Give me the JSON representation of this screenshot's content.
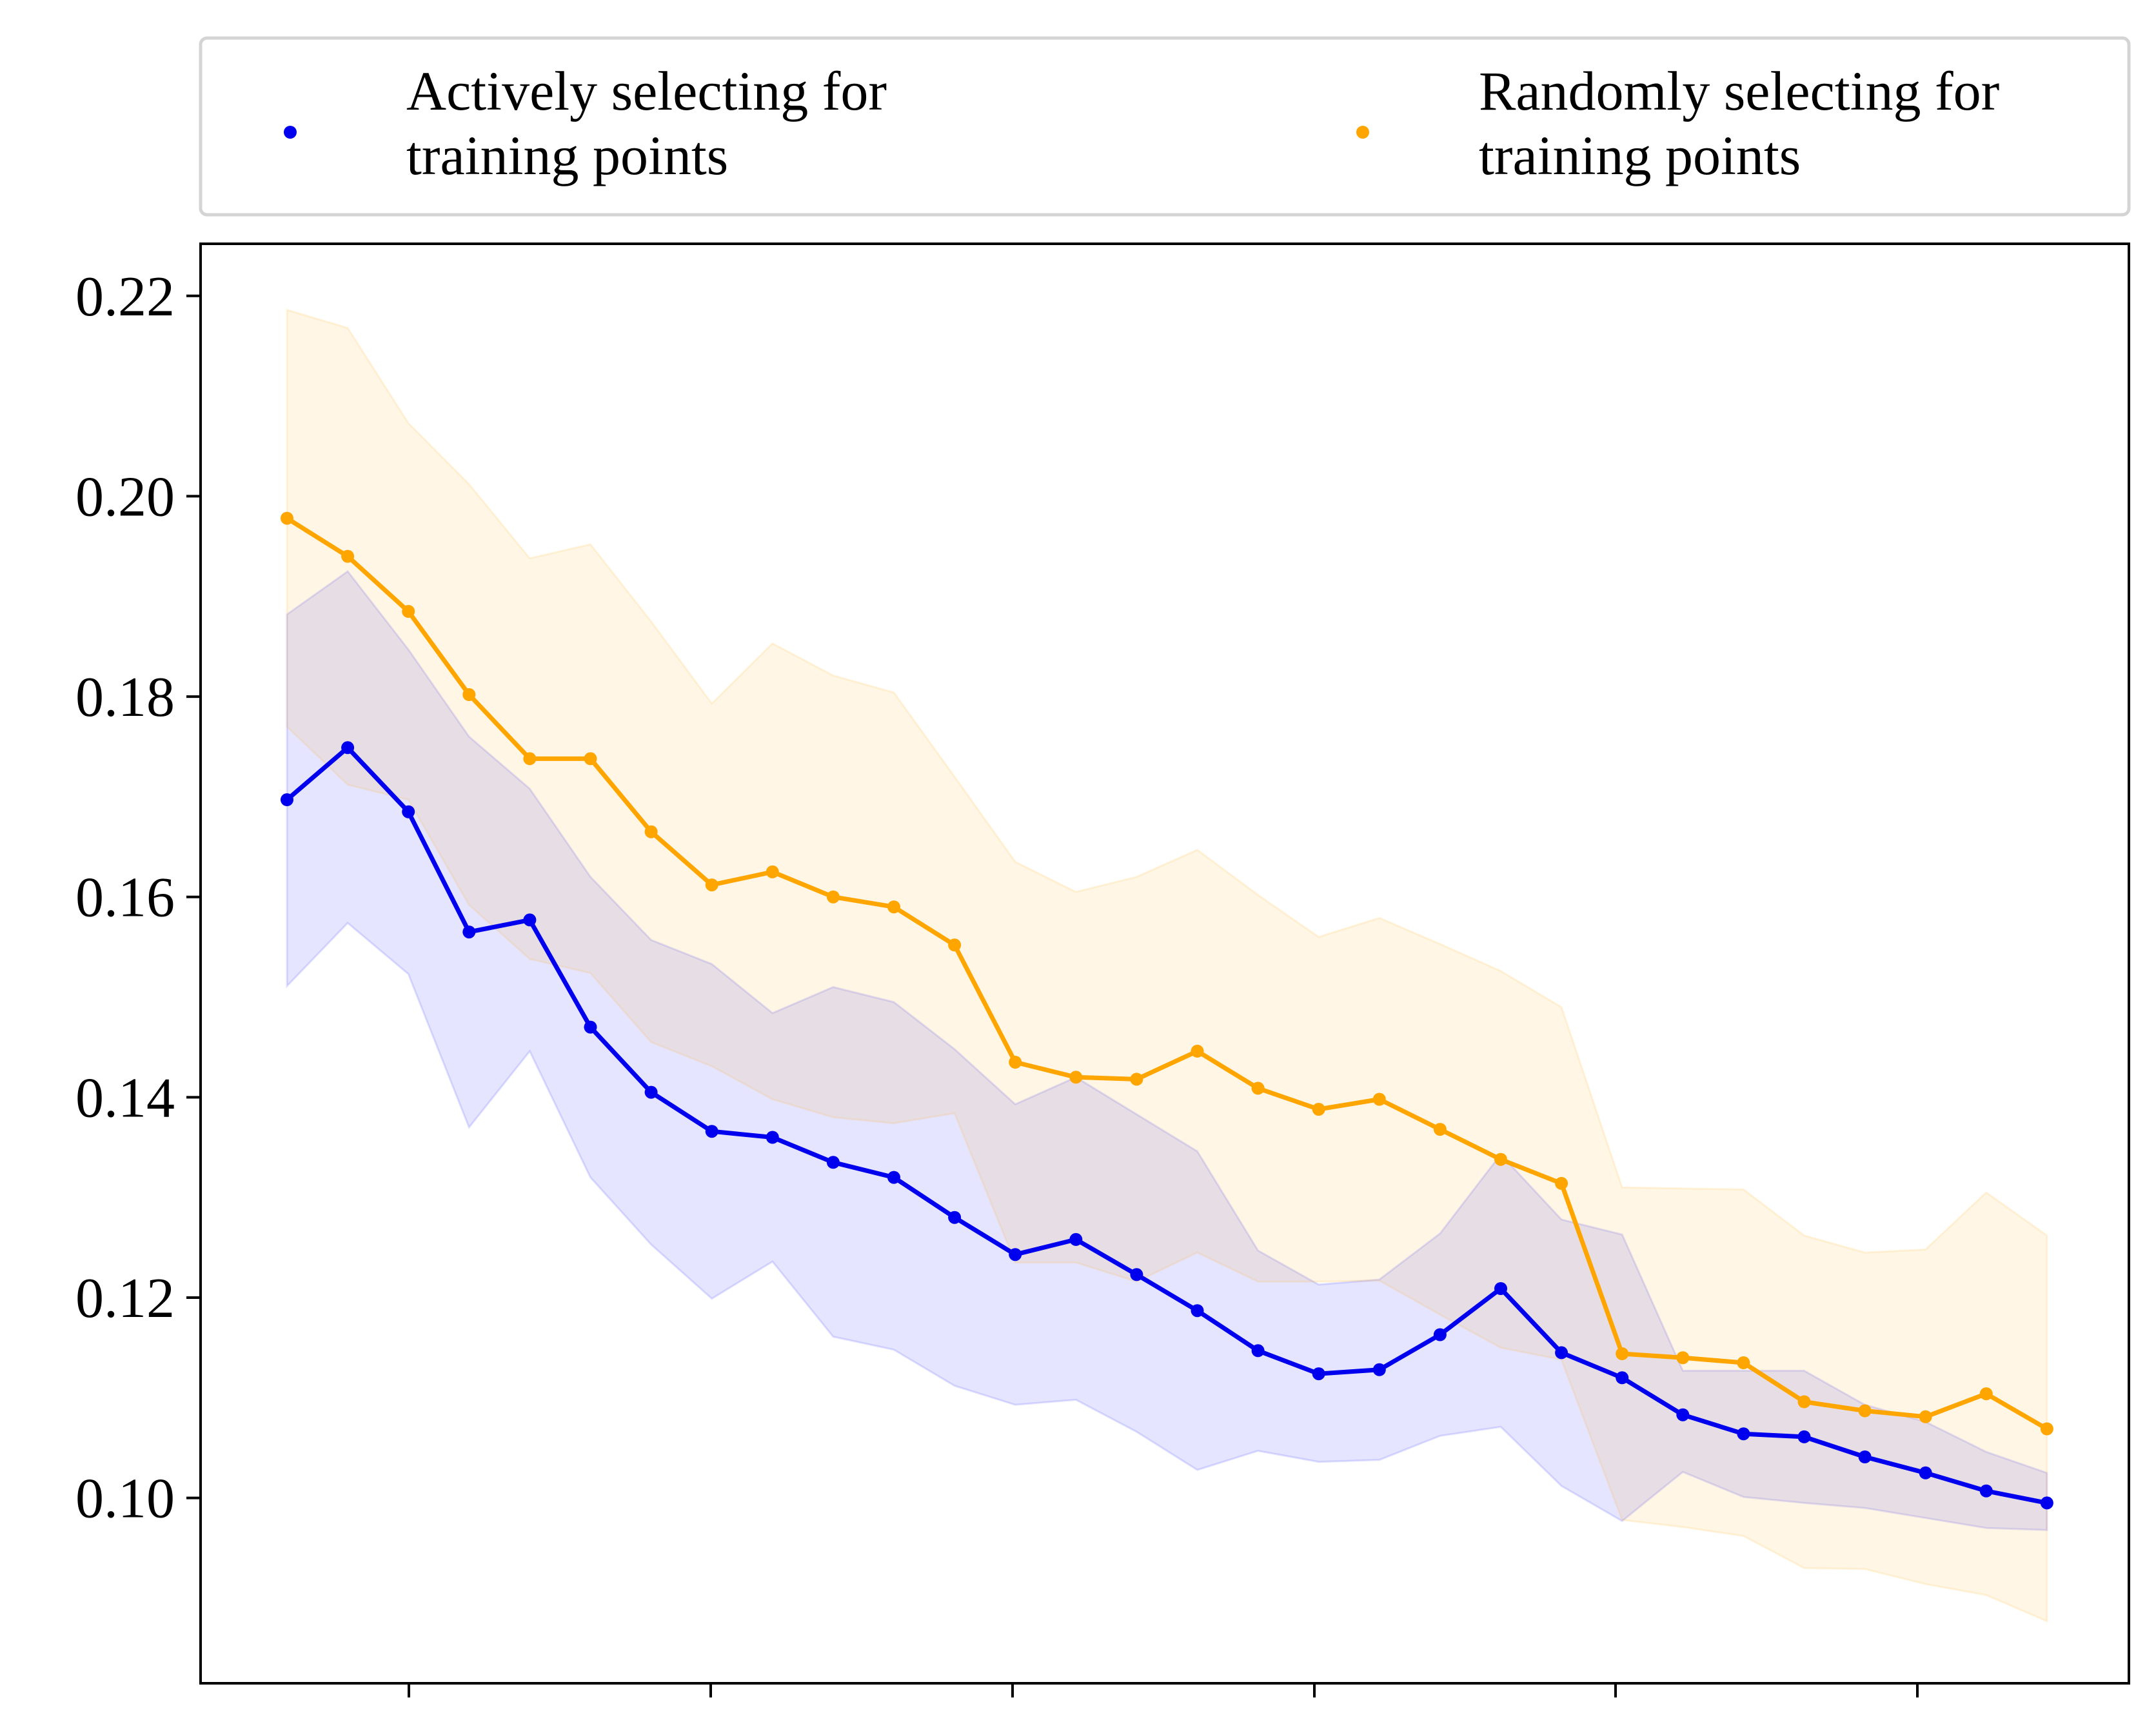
{
  "chart_data": {
    "type": "line",
    "title": "",
    "xlabel": "",
    "ylabel": "",
    "x": [
      1,
      2,
      3,
      4,
      5,
      6,
      7,
      8,
      9,
      10,
      11,
      12,
      13,
      14,
      15,
      16,
      17,
      18,
      19,
      20,
      21,
      22,
      23,
      24,
      25,
      26,
      27,
      28,
      29,
      30
    ],
    "ylim": [
      0.0815,
      0.2252
    ],
    "yticks": [
      0.1,
      0.12,
      0.14,
      0.16,
      0.18,
      0.2,
      0.22
    ],
    "ytick_labels": [
      "0.10",
      "0.12",
      "0.14",
      "0.16",
      "0.18",
      "0.20",
      "0.22"
    ],
    "xtick_labels": [
      "",
      "",
      "",
      "",
      "",
      ""
    ],
    "grid": false,
    "legend": {
      "placement": "above-plot",
      "columns": 2,
      "entries": [
        {
          "label_line1": "Actively selecting for",
          "label_line2": "training points",
          "color": "#0000ee"
        },
        {
          "label_line1": "Randomly selecting for",
          "label_line2": "training points",
          "color": "#ffa500"
        }
      ]
    },
    "series": [
      {
        "name": "Actively selecting for training points",
        "color": "#0000ee",
        "band_color": "#0000ff",
        "values": [
          0.1697,
          0.1749,
          0.1685,
          0.1565,
          0.1577,
          0.147,
          0.1405,
          0.1366,
          0.136,
          0.1335,
          0.132,
          0.128,
          0.1243,
          0.1258,
          0.1223,
          0.1187,
          0.1147,
          0.1124,
          0.1128,
          0.1163,
          0.1209,
          0.1145,
          0.112,
          0.1083,
          0.1064,
          0.1061,
          0.1041,
          0.1025,
          0.1007,
          0.0995
        ],
        "upper": [
          0.1882,
          0.1925,
          0.1847,
          0.176,
          0.1708,
          0.162,
          0.1557,
          0.1533,
          0.1484,
          0.151,
          0.1495,
          0.1448,
          0.1393,
          0.142,
          0.1383,
          0.1346,
          0.1247,
          0.1213,
          0.1218,
          0.1264,
          0.1343,
          0.1278,
          0.1263,
          0.1127,
          0.1127,
          0.1127,
          0.1093,
          0.1076,
          0.1046,
          0.1025
        ],
        "lower": [
          0.1511,
          0.1574,
          0.1523,
          0.137,
          0.1446,
          0.132,
          0.1253,
          0.1199,
          0.1236,
          0.1161,
          0.1148,
          0.1112,
          0.1093,
          0.1098,
          0.1066,
          0.1028,
          0.1047,
          0.1036,
          0.1038,
          0.1062,
          0.1071,
          0.1012,
          0.0977,
          0.1026,
          0.1001,
          0.0995,
          0.099,
          0.098,
          0.097,
          0.0968
        ]
      },
      {
        "name": "Randomly selecting for training points",
        "color": "#ffa500",
        "band_color": "#ffa500",
        "values": [
          0.1978,
          0.194,
          0.1885,
          0.1802,
          0.1738,
          0.1738,
          0.1665,
          0.1612,
          0.1625,
          0.16,
          0.159,
          0.1552,
          0.1435,
          0.142,
          0.1418,
          0.1446,
          0.1409,
          0.1388,
          0.1398,
          0.1368,
          0.1338,
          0.1314,
          0.1144,
          0.114,
          0.1135,
          0.1096,
          0.1087,
          0.1081,
          0.1104,
          0.1069
        ],
        "upper": [
          0.2186,
          0.2168,
          0.2073,
          0.2012,
          0.1938,
          0.1952,
          0.1875,
          0.1793,
          0.1853,
          0.1821,
          0.1804,
          0.172,
          0.1635,
          0.1605,
          0.162,
          0.1647,
          0.1602,
          0.156,
          0.1579,
          0.1553,
          0.1526,
          0.149,
          0.131,
          0.1309,
          0.1308,
          0.1262,
          0.1245,
          0.1248,
          0.1305,
          0.1262
        ],
        "lower": [
          0.177,
          0.1712,
          0.1697,
          0.1592,
          0.1538,
          0.1524,
          0.1455,
          0.1431,
          0.1398,
          0.138,
          0.1374,
          0.1384,
          0.1235,
          0.1235,
          0.1216,
          0.1245,
          0.1216,
          0.1216,
          0.1217,
          0.1183,
          0.115,
          0.1138,
          0.0978,
          0.0971,
          0.0962,
          0.093,
          0.0929,
          0.0914,
          0.0903,
          0.0877
        ]
      }
    ]
  }
}
